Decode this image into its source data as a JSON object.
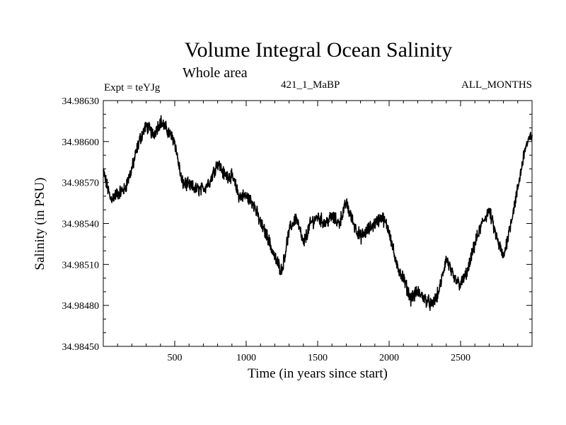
{
  "header": {
    "title": "Volume Integral Ocean Salinity",
    "subtitle": "Whole area",
    "experiment": "Expt = teYJg",
    "run_id": "421_1_MaBP",
    "period": "ALL_MONTHS"
  },
  "chart_data": {
    "type": "line",
    "title": "Volume Integral Ocean Salinity",
    "subtitle": "Whole area",
    "xlabel": "Time (in years since start)",
    "ylabel": "Salinity (in PSU)",
    "xlim": [
      0,
      3000
    ],
    "ylim": [
      34.9845,
      34.9863
    ],
    "x_ticks": [
      500,
      1000,
      1500,
      2000,
      2500
    ],
    "x_tick_labels": [
      "500",
      "1000",
      "1500",
      "2000",
      "2500"
    ],
    "y_ticks": [
      34.9845,
      34.9848,
      34.9851,
      34.9854,
      34.9857,
      34.986,
      34.9863
    ],
    "y_tick_labels": [
      "34.98450",
      "34.98480",
      "34.98510",
      "34.98540",
      "34.98570",
      "34.98600",
      "34.98630"
    ],
    "grid": false,
    "series": [
      {
        "name": "Salinity",
        "color": "#000000",
        "x": [
          0,
          50,
          100,
          150,
          200,
          250,
          300,
          350,
          400,
          450,
          500,
          550,
          600,
          650,
          700,
          750,
          800,
          850,
          900,
          950,
          1000,
          1050,
          1100,
          1150,
          1200,
          1250,
          1300,
          1350,
          1400,
          1450,
          1500,
          1550,
          1600,
          1650,
          1700,
          1750,
          1800,
          1850,
          1900,
          1950,
          2000,
          2050,
          2100,
          2150,
          2200,
          2250,
          2300,
          2350,
          2400,
          2450,
          2500,
          2550,
          2600,
          2650,
          2700,
          2750,
          2800,
          2850,
          2900,
          2950,
          3000
        ],
        "values": [
          34.98578,
          34.98558,
          34.98562,
          34.98565,
          34.9858,
          34.986,
          34.98612,
          34.98605,
          34.98615,
          34.98608,
          34.986,
          34.9857,
          34.98568,
          34.98565,
          34.98565,
          34.98572,
          34.98585,
          34.98575,
          34.98575,
          34.9856,
          34.9856,
          34.98555,
          34.9854,
          34.9853,
          34.98515,
          34.98505,
          34.98535,
          34.98545,
          34.98525,
          34.9854,
          34.98545,
          34.9854,
          34.98545,
          34.9854,
          34.98555,
          34.9854,
          34.9853,
          34.98535,
          34.9854,
          34.98545,
          34.98535,
          34.9851,
          34.985,
          34.98485,
          34.9849,
          34.98485,
          34.9848,
          34.9849,
          34.98515,
          34.985,
          34.98495,
          34.98505,
          34.98525,
          34.9854,
          34.9855,
          34.9853,
          34.98515,
          34.9854,
          34.98565,
          34.98595,
          34.98605
        ]
      }
    ]
  }
}
